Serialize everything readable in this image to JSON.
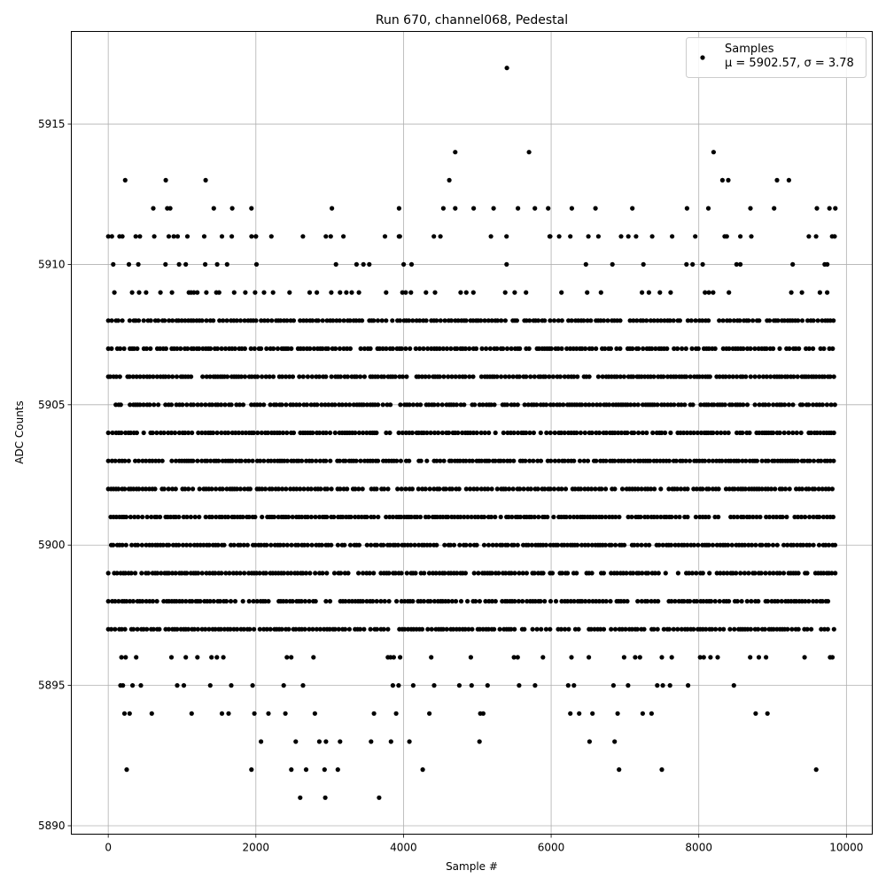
{
  "chart_data": {
    "type": "scatter",
    "title": "Run 670, channel068, Pedestal",
    "xlabel": "Sample #",
    "ylabel": "ADC Counts",
    "xlim": [
      -500,
      10350
    ],
    "ylim": [
      5889.7,
      5918.3
    ],
    "xticks": [
      0,
      2000,
      4000,
      6000,
      8000,
      10000
    ],
    "yticks": [
      5890,
      5895,
      5900,
      5905,
      5910,
      5915
    ],
    "grid": true,
    "legend_position": "top-right",
    "marker_color": "#000000",
    "series": [
      {
        "name": "Samples",
        "legend_stats": "μ = 5902.57, σ = 3.78",
        "n_samples": 9850,
        "dense_levels": [
          5897,
          5898,
          5899,
          5900,
          5901,
          5902,
          5903,
          5904,
          5905,
          5906,
          5907,
          5908
        ],
        "sparse_levels": [
          5895,
          5896,
          5909,
          5910,
          5911
        ],
        "points": [
          [
            5400,
            5917
          ],
          [
            4700,
            5914
          ],
          [
            5700,
            5914
          ],
          [
            8200,
            5914
          ],
          [
            230,
            5913
          ],
          [
            780,
            5913
          ],
          [
            1320,
            5913
          ],
          [
            4620,
            5913
          ],
          [
            8320,
            5913
          ],
          [
            8400,
            5913
          ],
          [
            9060,
            5913
          ],
          [
            9220,
            5913
          ],
          [
            610,
            5912
          ],
          [
            800,
            5912
          ],
          [
            840,
            5912
          ],
          [
            1430,
            5912
          ],
          [
            1680,
            5912
          ],
          [
            1940,
            5912
          ],
          [
            3030,
            5912
          ],
          [
            3940,
            5912
          ],
          [
            4540,
            5912
          ],
          [
            4700,
            5912
          ],
          [
            4950,
            5912
          ],
          [
            5220,
            5912
          ],
          [
            5550,
            5912
          ],
          [
            5780,
            5912
          ],
          [
            5960,
            5912
          ],
          [
            6280,
            5912
          ],
          [
            6600,
            5912
          ],
          [
            7100,
            5912
          ],
          [
            7840,
            5912
          ],
          [
            8130,
            5912
          ],
          [
            8700,
            5912
          ],
          [
            9020,
            5912
          ],
          [
            9600,
            5912
          ],
          [
            9770,
            5912
          ],
          [
            9850,
            5912
          ],
          [
            50,
            5911
          ],
          [
            820,
            5911
          ],
          [
            940,
            5911
          ],
          [
            1300,
            5911
          ],
          [
            2000,
            5911
          ],
          [
            2210,
            5911
          ],
          [
            3950,
            5911
          ],
          [
            5980,
            5911
          ],
          [
            6260,
            5911
          ],
          [
            6640,
            5911
          ],
          [
            7150,
            5911
          ],
          [
            8350,
            5911
          ],
          [
            9840,
            5911
          ],
          [
            2600,
            5891
          ],
          [
            2940,
            5891
          ],
          [
            3670,
            5891
          ],
          [
            250,
            5892
          ],
          [
            1940,
            5892
          ],
          [
            2480,
            5892
          ],
          [
            2680,
            5892
          ],
          [
            2930,
            5892
          ],
          [
            3110,
            5892
          ],
          [
            4260,
            5892
          ],
          [
            6920,
            5892
          ],
          [
            7500,
            5892
          ],
          [
            9590,
            5892
          ],
          [
            2070,
            5893
          ],
          [
            2540,
            5893
          ],
          [
            2860,
            5893
          ],
          [
            2950,
            5893
          ],
          [
            3140,
            5893
          ],
          [
            3560,
            5893
          ],
          [
            3830,
            5893
          ],
          [
            4080,
            5893
          ],
          [
            5030,
            5893
          ],
          [
            6520,
            5893
          ],
          [
            6860,
            5893
          ],
          [
            220,
            5894
          ],
          [
            290,
            5894
          ],
          [
            590,
            5894
          ],
          [
            1130,
            5894
          ],
          [
            1540,
            5894
          ],
          [
            1630,
            5894
          ],
          [
            1980,
            5894
          ],
          [
            2170,
            5894
          ],
          [
            2400,
            5894
          ],
          [
            2800,
            5894
          ],
          [
            3600,
            5894
          ],
          [
            3900,
            5894
          ],
          [
            4350,
            5894
          ],
          [
            5040,
            5894
          ],
          [
            5080,
            5894
          ],
          [
            6260,
            5894
          ],
          [
            6380,
            5894
          ],
          [
            6560,
            5894
          ],
          [
            6900,
            5894
          ],
          [
            7240,
            5894
          ],
          [
            7360,
            5894
          ],
          [
            8770,
            5894
          ],
          [
            8930,
            5894
          ]
        ]
      }
    ]
  }
}
